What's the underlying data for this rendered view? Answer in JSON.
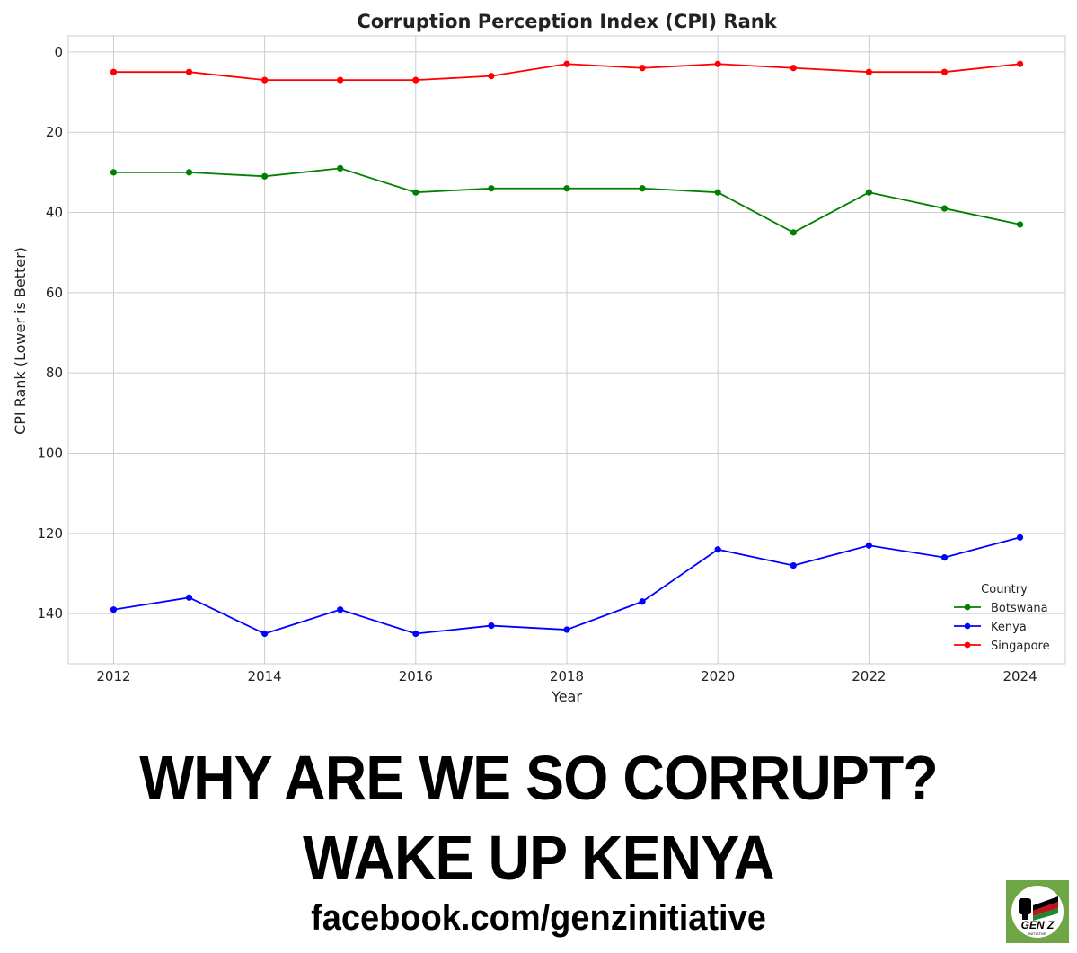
{
  "chart_data": {
    "type": "line",
    "title": "Corruption Perception Index (CPI) Rank",
    "xlabel": "Year",
    "ylabel": "CPI Rank (Lower is Better)",
    "x": [
      2012,
      2013,
      2014,
      2015,
      2016,
      2017,
      2018,
      2019,
      2020,
      2021,
      2022,
      2023,
      2024
    ],
    "xticks": [
      "2012",
      "2014",
      "2016",
      "2018",
      "2020",
      "2022",
      "2024"
    ],
    "yticks": [
      "0",
      "20",
      "40",
      "60",
      "80",
      "100",
      "120",
      "140"
    ],
    "xlim": [
      2011.4,
      2024.6
    ],
    "ylim": [
      -4,
      152.5
    ],
    "y_inverted": true,
    "grid": true,
    "legend_title": "Country",
    "legend_position": "lower-right",
    "series": [
      {
        "name": "Botswana",
        "color": "#008000",
        "values": [
          30,
          30,
          31,
          29,
          35,
          34,
          34,
          34,
          35,
          45,
          35,
          39,
          43
        ]
      },
      {
        "name": "Kenya",
        "color": "#0000ff",
        "values": [
          139,
          136,
          145,
          139,
          145,
          143,
          144,
          137,
          124,
          128,
          123,
          126,
          121
        ]
      },
      {
        "name": "Singapore",
        "color": "#ff0000",
        "values": [
          5,
          5,
          7,
          7,
          7,
          6,
          3,
          4,
          3,
          4,
          5,
          5,
          3
        ]
      }
    ]
  },
  "banner": {
    "line1": "WHY ARE WE SO CORRUPT?",
    "line2": "WAKE UP KENYA",
    "url": "facebook.com/genzinitiative"
  },
  "logo": {
    "text": "GEN Z",
    "subtext": "INITIATIVE",
    "background": "#6ea545"
  }
}
